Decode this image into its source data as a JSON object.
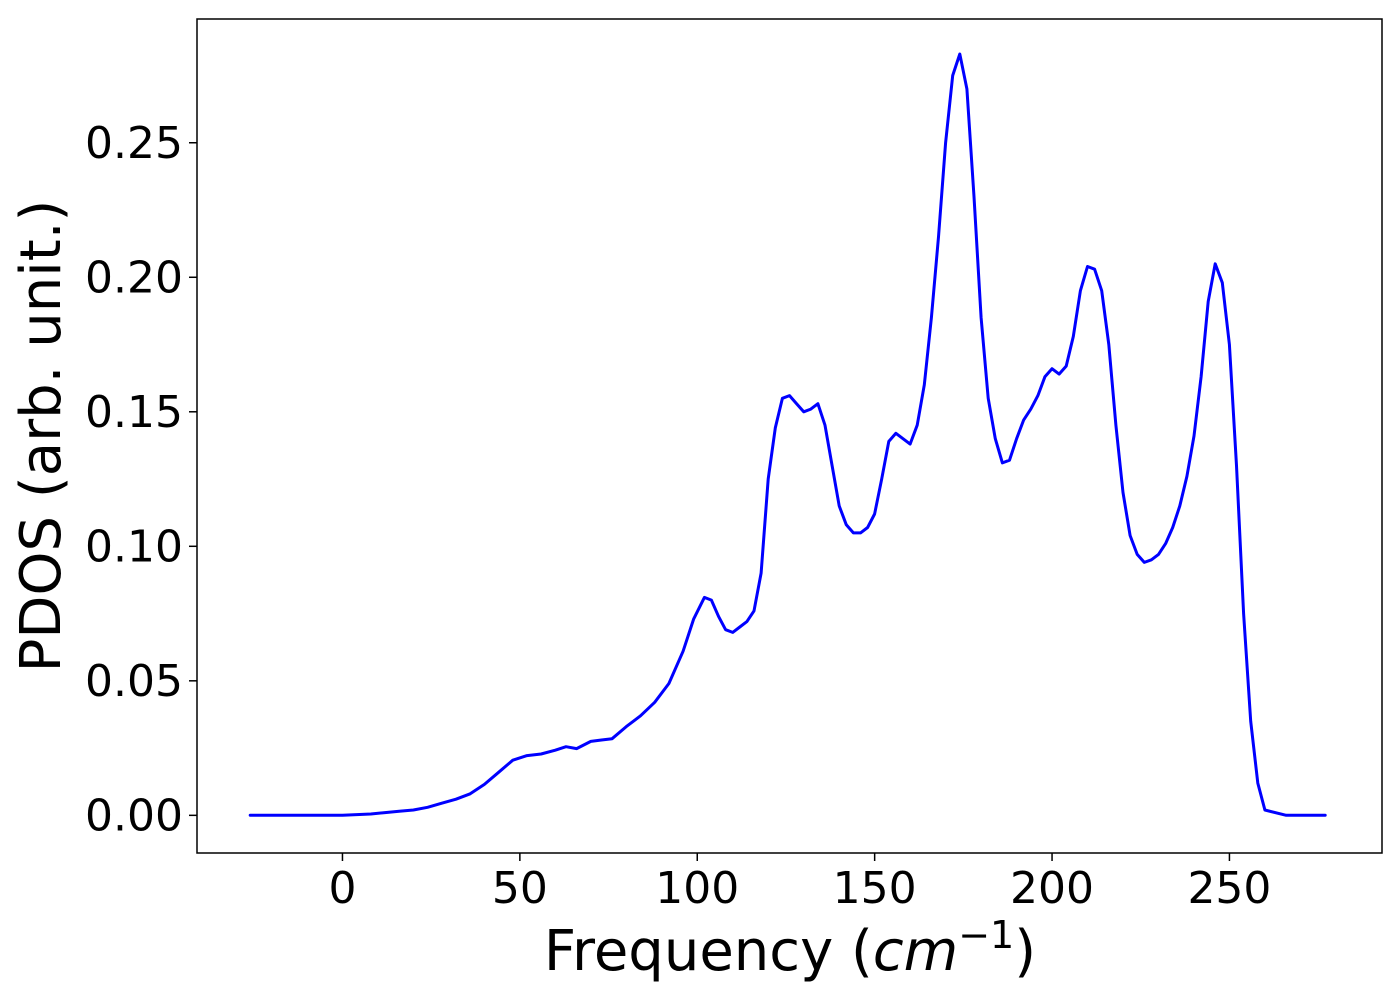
{
  "chart_data": {
    "type": "line",
    "title": "",
    "xlabel": "Frequency (cm−1)",
    "xlabel_parts": {
      "prefix": "Frequency (",
      "unit": "cm",
      "exponent": "−1",
      "suffix": ")"
    },
    "ylabel": "PDOS (arb. unit.)",
    "xlim": [
      -41,
      293
    ],
    "ylim": [
      -0.014,
      0.296
    ],
    "xticks": [
      0,
      50,
      100,
      150,
      200,
      250
    ],
    "xtick_labels": [
      "0",
      "50",
      "100",
      "150",
      "200",
      "250"
    ],
    "yticks": [
      0.0,
      0.05,
      0.1,
      0.15,
      0.2,
      0.25
    ],
    "ytick_labels": [
      "0.00",
      "0.05",
      "0.10",
      "0.15",
      "0.20",
      "0.25"
    ],
    "grid": false,
    "legend": "none",
    "series": [
      {
        "color": "#0000ff",
        "x": [
          -26,
          0,
          8,
          12,
          16,
          20,
          24,
          28,
          32,
          36,
          40,
          44,
          48,
          52,
          56,
          60,
          63,
          66,
          70,
          73,
          76,
          80,
          84,
          88,
          92,
          96,
          99,
          102,
          104,
          106,
          108,
          110,
          112,
          114,
          116,
          118,
          120,
          122,
          124,
          126,
          128,
          130,
          132,
          134,
          136,
          138,
          140,
          142,
          144,
          146,
          148,
          150,
          152,
          154,
          156,
          158,
          160,
          162,
          164,
          166,
          168,
          170,
          172,
          174,
          176,
          178,
          180,
          182,
          184,
          186,
          188,
          190,
          192,
          194,
          196,
          198,
          200,
          202,
          204,
          206,
          208,
          210,
          212,
          214,
          216,
          218,
          220,
          222,
          224,
          226,
          228,
          230,
          232,
          234,
          236,
          238,
          240,
          242,
          244,
          246,
          248,
          250,
          252,
          254,
          256,
          258,
          260,
          266,
          277
        ],
        "y": [
          0.0,
          0.0,
          0.0005,
          0.001,
          0.0015,
          0.002,
          0.003,
          0.0045,
          0.006,
          0.008,
          0.0115,
          0.016,
          0.0205,
          0.0222,
          0.0228,
          0.0242,
          0.0255,
          0.0248,
          0.0275,
          0.028,
          0.0285,
          0.033,
          0.037,
          0.042,
          0.049,
          0.061,
          0.073,
          0.081,
          0.08,
          0.074,
          0.069,
          0.068,
          0.07,
          0.072,
          0.076,
          0.09,
          0.125,
          0.144,
          0.155,
          0.156,
          0.153,
          0.15,
          0.151,
          0.153,
          0.145,
          0.13,
          0.115,
          0.108,
          0.105,
          0.105,
          0.107,
          0.112,
          0.125,
          0.139,
          0.142,
          0.14,
          0.138,
          0.145,
          0.16,
          0.185,
          0.215,
          0.25,
          0.275,
          0.283,
          0.27,
          0.23,
          0.185,
          0.155,
          0.14,
          0.131,
          0.132,
          0.14,
          0.147,
          0.151,
          0.156,
          0.163,
          0.166,
          0.164,
          0.167,
          0.178,
          0.195,
          0.204,
          0.203,
          0.195,
          0.175,
          0.145,
          0.12,
          0.104,
          0.097,
          0.094,
          0.095,
          0.097,
          0.101,
          0.107,
          0.115,
          0.126,
          0.141,
          0.163,
          0.191,
          0.205,
          0.198,
          0.175,
          0.13,
          0.075,
          0.035,
          0.012,
          0.002,
          0.0,
          0.0
        ]
      }
    ]
  }
}
